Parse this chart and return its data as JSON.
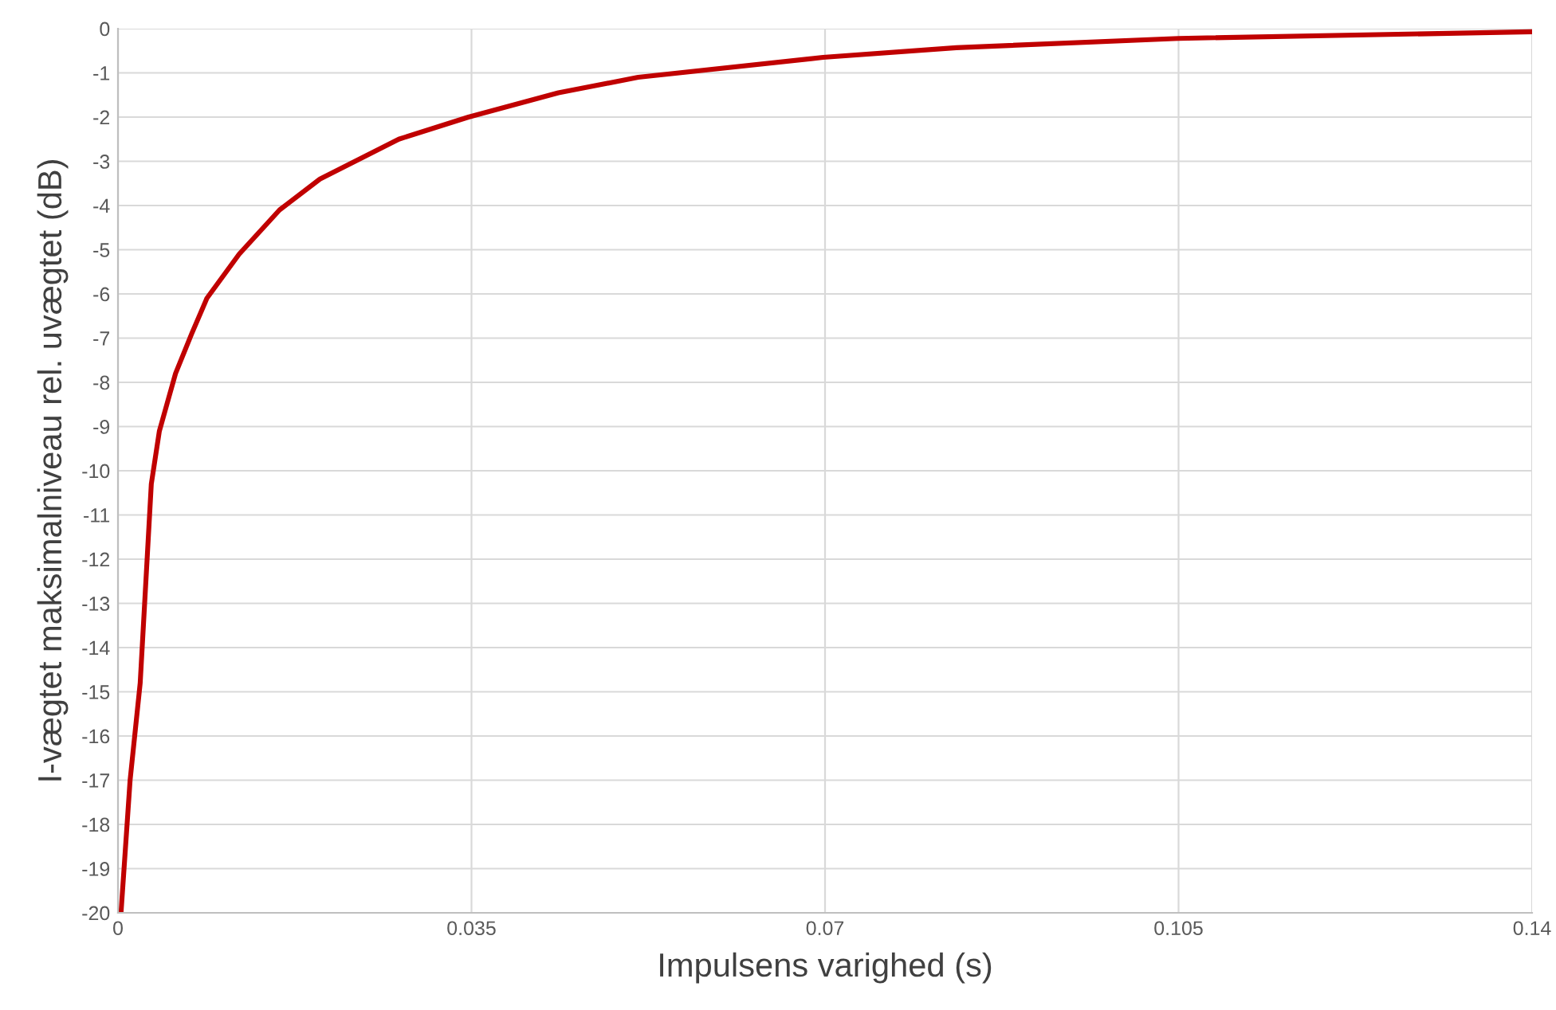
{
  "chart_data": {
    "type": "line",
    "xlabel": "Impulsens varighed (s)",
    "ylabel": "I-vægtet maksimalniveau rel. uvægtet (dB)",
    "series": [
      {
        "color": "#c00000",
        "x": [
          0.0003,
          0.0012,
          0.0022,
          0.0033,
          0.0041,
          0.0057,
          0.0073,
          0.0088,
          0.012,
          0.016,
          0.02,
          0.0278,
          0.0347,
          0.0436,
          0.0515,
          0.0698,
          0.083,
          0.105,
          0.14
        ],
        "values": [
          -20,
          -17,
          -14.8,
          -10.3,
          -9.1,
          -7.8,
          -6.9,
          -6.1,
          -5.1,
          -4.1,
          -3.4,
          -2.5,
          -2.0,
          -1.45,
          -1.1,
          -0.65,
          -0.43,
          -0.22,
          -0.07
        ]
      }
    ],
    "xlim": [
      0,
      0.14
    ],
    "xticks": [
      0,
      0.035,
      0.07,
      0.105,
      0.14
    ],
    "ylim": [
      -20,
      0
    ],
    "yticks": [
      -20,
      -19,
      -18,
      -17,
      -16,
      -15,
      -14,
      -13,
      -12,
      -11,
      -10,
      -9,
      -8,
      -7,
      -6,
      -5,
      -4,
      -3,
      -2,
      -1,
      0
    ],
    "grid": true,
    "marker": "none",
    "line_style": "solid"
  }
}
